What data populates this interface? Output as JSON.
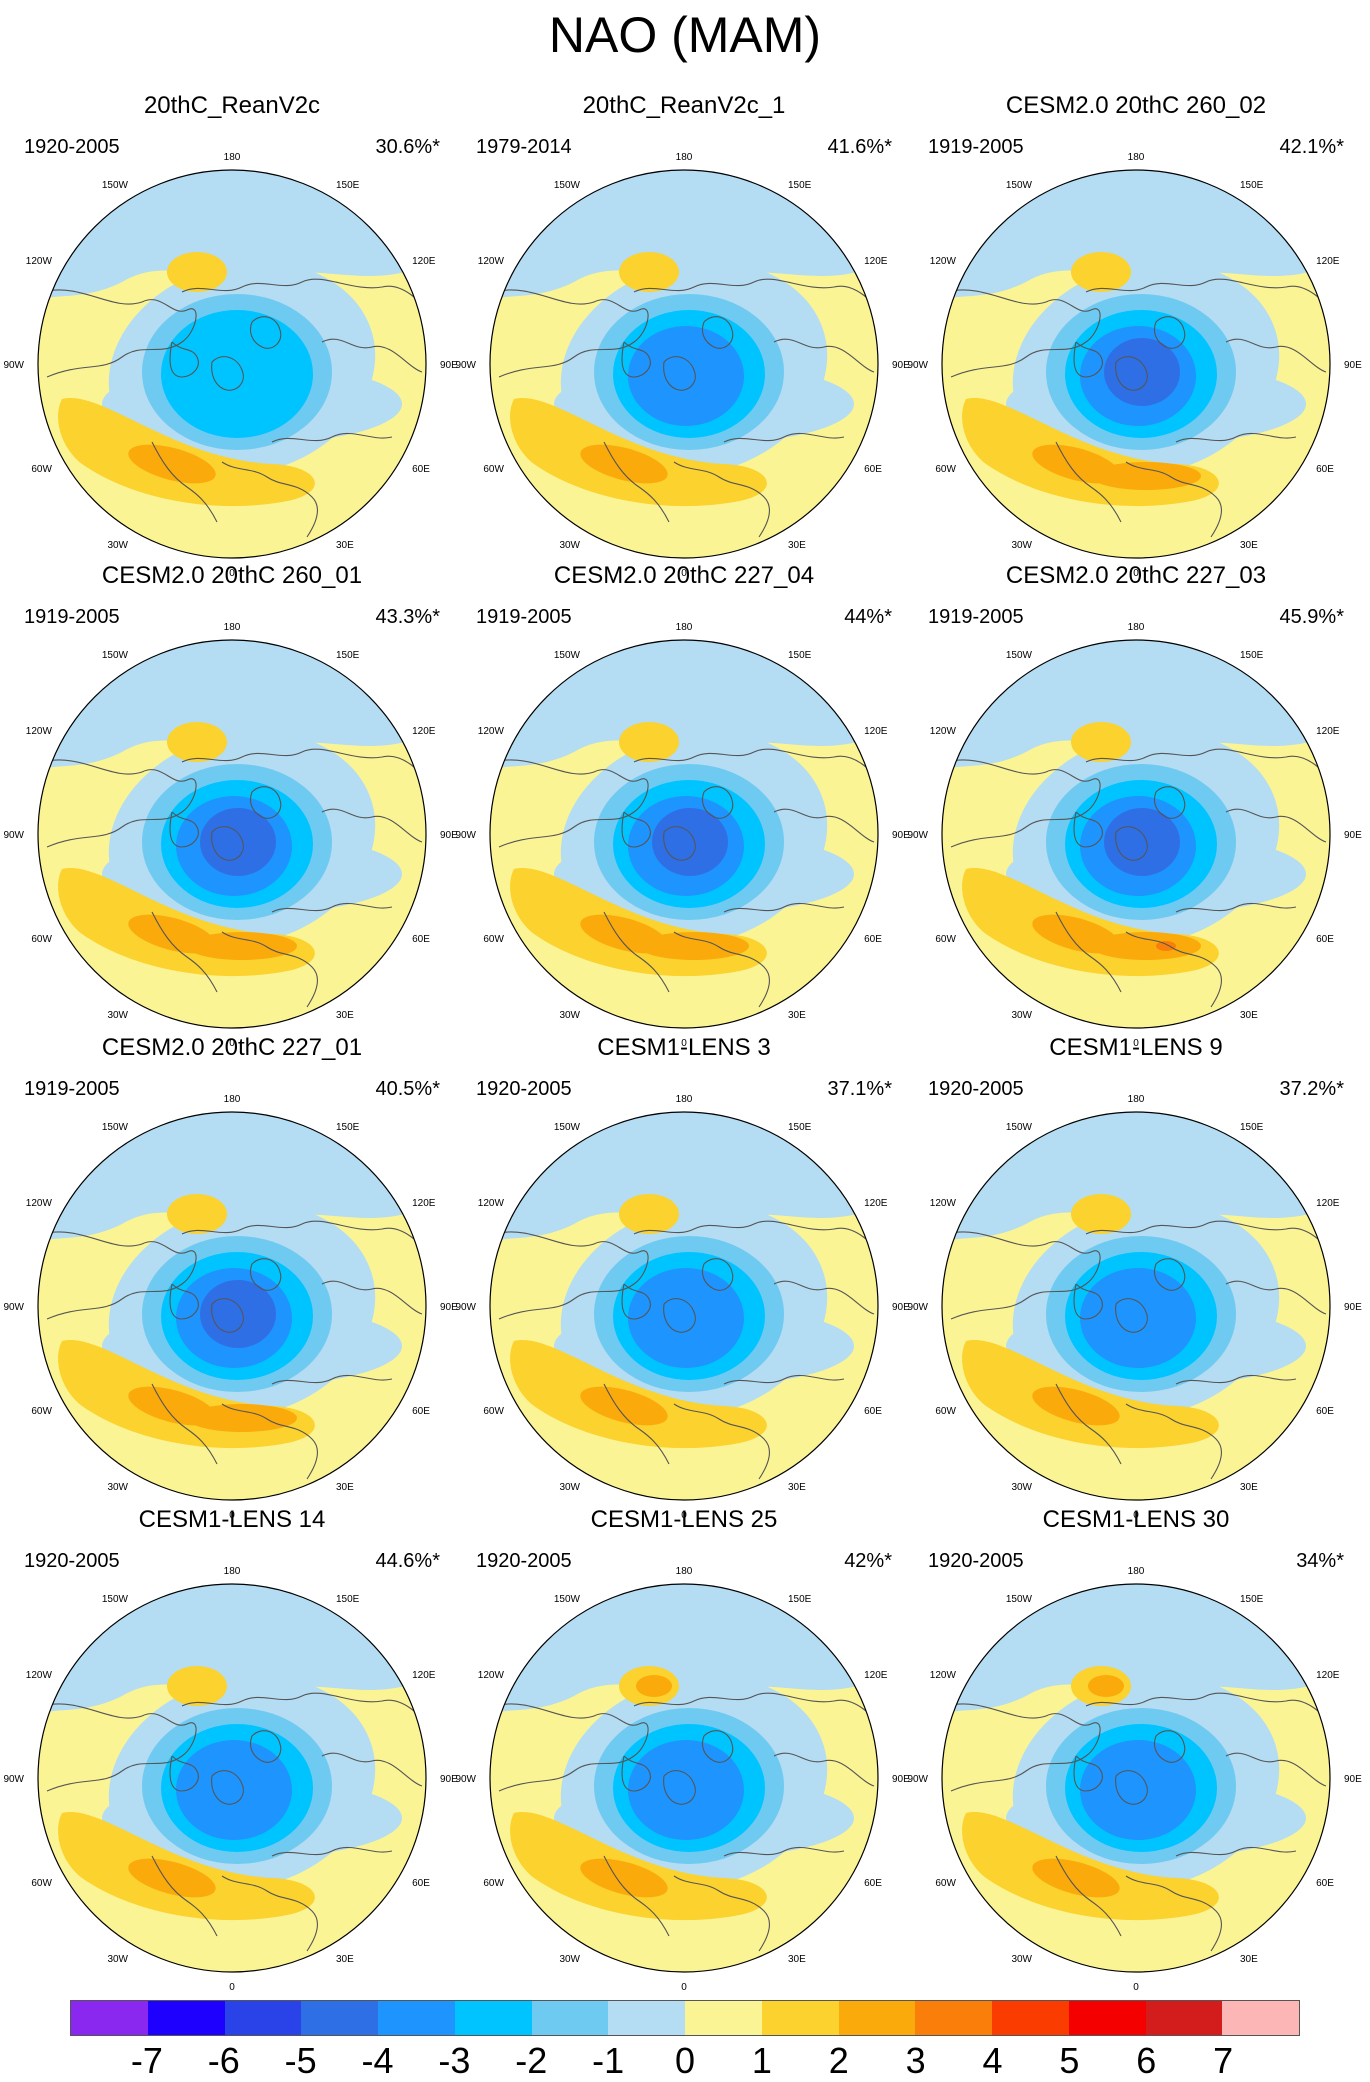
{
  "title": "NAO (MAM)",
  "panels": [
    {
      "title": "20thC_ReanV2c",
      "period": "1920-2005",
      "percent": "30.6%*"
    },
    {
      "title": "20thC_ReanV2c_1",
      "period": "1979-2014",
      "percent": "41.6%*"
    },
    {
      "title": "CESM2.0 20thC 260_02",
      "period": "1919-2005",
      "percent": "42.1%*"
    },
    {
      "title": "CESM2.0 20thC 260_01",
      "period": "1919-2005",
      "percent": "43.3%*"
    },
    {
      "title": "CESM2.0 20thC 227_04",
      "period": "1919-2005",
      "percent": "44%*"
    },
    {
      "title": "CESM2.0 20thC 227_03",
      "period": "1919-2005",
      "percent": "45.9%*"
    },
    {
      "title": "CESM2.0 20thC 227_01",
      "period": "1919-2005",
      "percent": "40.5%*"
    },
    {
      "title": "CESM1-LENS 3",
      "period": "1920-2005",
      "percent": "37.1%*"
    },
    {
      "title": "CESM1-LENS 9",
      "period": "1920-2005",
      "percent": "37.2%*"
    },
    {
      "title": "CESM1-LENS 14",
      "period": "1920-2005",
      "percent": "44.6%*"
    },
    {
      "title": "CESM1-LENS 25",
      "period": "1920-2005",
      "percent": "42%*"
    },
    {
      "title": "CESM1-LENS 30",
      "period": "1920-2005",
      "percent": "34%*"
    }
  ],
  "longitude_labels": [
    "180",
    "150E",
    "120E",
    "90E",
    "60E",
    "30E",
    "0",
    "30W",
    "60W",
    "90W",
    "120W",
    "150W"
  ],
  "colorbar": {
    "colors": [
      "#8a28f0",
      "#1e00ff",
      "#2a43e8",
      "#2f6fe6",
      "#1e94ff",
      "#00c4ff",
      "#6fcaf1",
      "#b4dcf2",
      "#fbf495",
      "#fbd22e",
      "#fbaa0c",
      "#f97f0a",
      "#fa3c00",
      "#f50000",
      "#d31d1d",
      "#fdb6b6"
    ],
    "labels": [
      "-7",
      "-6",
      "-5",
      "-4",
      "-3",
      "-2",
      "-1",
      "0",
      "1",
      "2",
      "3",
      "4",
      "5",
      "6",
      "7"
    ]
  }
}
